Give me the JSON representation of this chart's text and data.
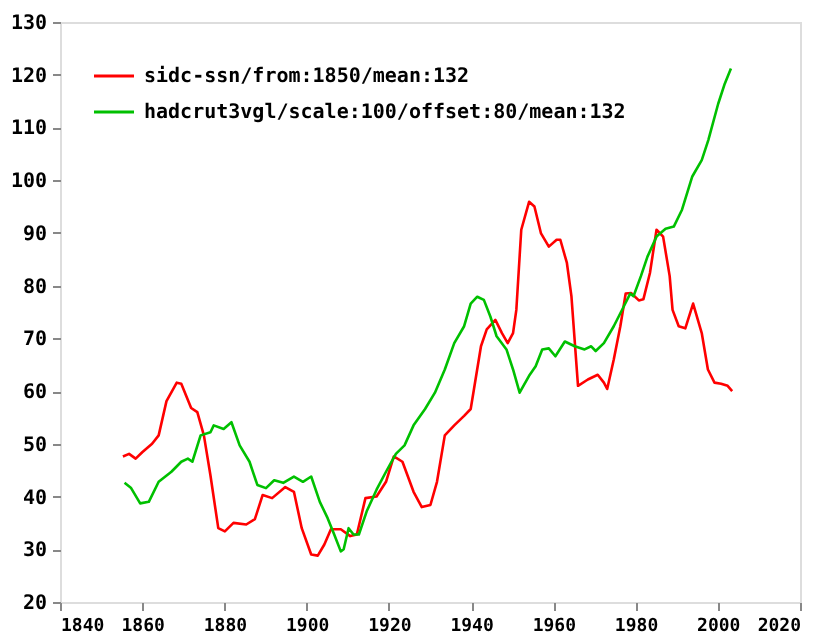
{
  "chart_data": {
    "type": "line",
    "xlim": [
      1840,
      2020
    ],
    "xticks": [
      1840,
      1860,
      1880,
      1900,
      1920,
      1940,
      1960,
      1980,
      2000,
      2020
    ],
    "ylim": [
      20,
      130
    ],
    "yticks": [
      20,
      30,
      40,
      50,
      60,
      70,
      80,
      90,
      100,
      110,
      120,
      130
    ],
    "grid": false,
    "legend": "top left",
    "marker": "none",
    "line_style": "solid",
    "series": [
      {
        "name": "sidc-ssn/from:1850/mean:132",
        "color": "#ff0000",
        "x": [
          1855.3,
          1856.8,
          1858.4,
          1860,
          1862.4,
          1864,
          1865.9,
          1868.4,
          1869.5,
          1871.9,
          1873.4,
          1875,
          1876.6,
          1878.5,
          1880.1,
          1882.2,
          1885.3,
          1887.4,
          1889.3,
          1891.6,
          1894.8,
          1896.9,
          1898.8,
          1901.1,
          1902.7,
          1904.3,
          1905.9,
          1908.3,
          1910.6,
          1912.2,
          1914.3,
          1917,
          1919.3,
          1921.2,
          1923.3,
          1926,
          1928,
          1930.1,
          1931.7,
          1933.6,
          1935.9,
          1938.3,
          1939.9,
          1940.7,
          1942.4,
          1943.8,
          1945.9,
          1947.5,
          1948.9,
          1950.2,
          1951,
          1952.2,
          1954.1,
          1955.4,
          1957,
          1958.9,
          1960.8,
          1961.7,
          1963.3,
          1964.4,
          1966,
          1968.4,
          1970.8,
          1972.3,
          1973.1,
          1974.7,
          1976.3,
          1977.6,
          1978.9,
          1980.8,
          1981.9,
          1983.5,
          1985.1,
          1986.7,
          1988.3,
          1989,
          1990.5,
          1992.1,
          1994,
          1996.1,
          1997.6,
          1999.2,
          2000.8,
          2002.4,
          2003.5
        ],
        "values": [
          47.6,
          48.1,
          47.2,
          48.4,
          50,
          51.6,
          58.1,
          61.6,
          61.4,
          56.8,
          56,
          51.6,
          44,
          34,
          33.4,
          35,
          34.7,
          35.7,
          40.3,
          39.7,
          41.8,
          40.9,
          34,
          29,
          28.8,
          30.9,
          33.8,
          33.8,
          32.5,
          32.8,
          39.7,
          40,
          42.8,
          47.6,
          46.6,
          40.9,
          38,
          38.4,
          42.8,
          51.6,
          53.5,
          55.3,
          56.6,
          60.4,
          68.5,
          71.7,
          73.5,
          71,
          69.1,
          71,
          75.4,
          90.6,
          95.9,
          95,
          89.9,
          87.4,
          88.7,
          88.7,
          84.3,
          78,
          61,
          62.2,
          63.1,
          61.6,
          60.4,
          66,
          72.3,
          78.5,
          78.6,
          77.2,
          77.4,
          82.4,
          90.6,
          89.3,
          81.8,
          75.4,
          72.3,
          71.9,
          76.6,
          71,
          64.1,
          61.6,
          61.4,
          61,
          60
        ]
      },
      {
        "name": "hadcrut3vgl/scale:100/offset:80/mean:132",
        "color": "#00c000",
        "x": [
          1855.7,
          1857.3,
          1859.5,
          1861.6,
          1864,
          1867.1,
          1869.5,
          1871.1,
          1872.2,
          1874.2,
          1876.6,
          1877.4,
          1879.8,
          1881.7,
          1883.7,
          1886.1,
          1888,
          1890.1,
          1892.1,
          1894.3,
          1896.9,
          1899.1,
          1901.1,
          1903.2,
          1905.1,
          1906.7,
          1908.3,
          1909,
          1910.2,
          1911.4,
          1912.7,
          1914.6,
          1917,
          1919.3,
          1921.7,
          1923.8,
          1926,
          1928.8,
          1931.2,
          1933.6,
          1935.9,
          1938.3,
          1939.9,
          1941.5,
          1943.1,
          1944.7,
          1946.2,
          1948.6,
          1950.2,
          1951.8,
          1954.1,
          1955.7,
          1957.3,
          1958.9,
          1960.5,
          1962.8,
          1965.2,
          1967.6,
          1969.2,
          1970.3,
          1972.3,
          1974.7,
          1977.1,
          1978.7,
          1979.5,
          1981.3,
          1982.9,
          1985.1,
          1987.3,
          1989.3,
          1991.3,
          1993.8,
          1996.1,
          1997.7,
          2000.1,
          2001.7,
          2003.2
        ],
        "values": [
          42.6,
          41.6,
          38.7,
          39,
          42.8,
          44.7,
          46.6,
          47.2,
          46.6,
          51.6,
          52.2,
          53.5,
          52.8,
          54.1,
          49.7,
          46.6,
          42.2,
          41.6,
          43.1,
          42.6,
          43.8,
          42.8,
          43.8,
          39,
          35.9,
          32.8,
          29.6,
          30,
          34,
          32.8,
          32.8,
          37.2,
          41.3,
          44.7,
          48.1,
          49.7,
          53.5,
          56.6,
          59.7,
          64.1,
          69.1,
          72.3,
          76.6,
          77.9,
          77.3,
          74.1,
          70.4,
          67.9,
          64.1,
          59.7,
          62.9,
          64.7,
          67.9,
          68.1,
          66.6,
          69.4,
          68.5,
          67.9,
          68.5,
          67.6,
          69.1,
          72.3,
          76,
          78.5,
          78,
          81.8,
          85.5,
          89.3,
          90.8,
          91.2,
          94.4,
          100.7,
          103.8,
          107.6,
          114.5,
          118.3,
          121.2
        ]
      }
    ]
  }
}
